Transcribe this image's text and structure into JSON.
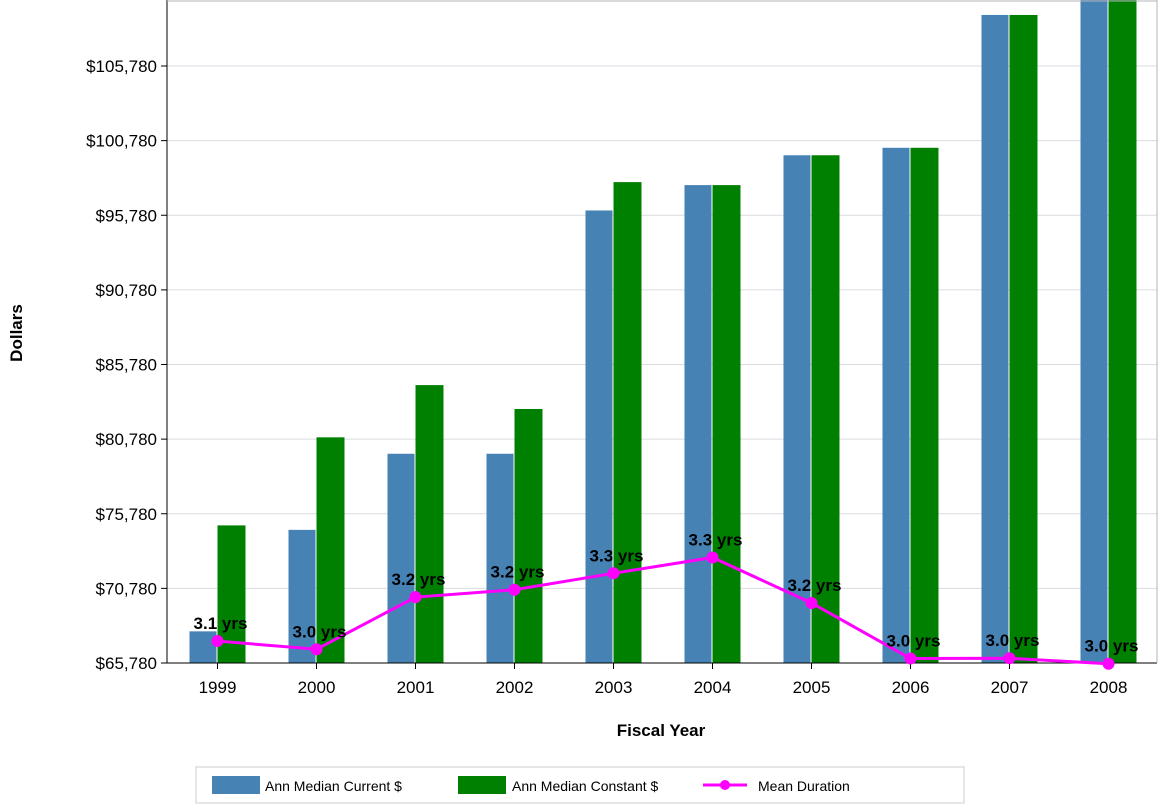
{
  "chart_data": {
    "type": "bar",
    "xlabel": "Fiscal Year",
    "ylabel": "Dollars",
    "categories": [
      "1999",
      "2000",
      "2001",
      "2002",
      "2003",
      "2004",
      "2005",
      "2006",
      "2007",
      "2008"
    ],
    "ylim": [
      65780,
      110200
    ],
    "yticks": [
      65780,
      70780,
      75780,
      80780,
      85780,
      90780,
      95780,
      100780,
      105780
    ],
    "ytick_labels": [
      "$65,780",
      "$70,780",
      "$75,780",
      "$80,780",
      "$85,780",
      "$90,780",
      "$95,780",
      "$100,780",
      "$105,780"
    ],
    "grid": true,
    "legend_position": "bottom",
    "series": [
      {
        "name": "Ann Median Current $",
        "kind": "bar",
        "color": "#4682B4",
        "values": [
          67900,
          74700,
          79800,
          79800,
          96100,
          97800,
          99800,
          100300,
          109200,
          110200
        ]
      },
      {
        "name": "Ann Median Constant $",
        "kind": "bar",
        "color": "#008000",
        "values": [
          75000,
          80900,
          84400,
          82800,
          98000,
          97800,
          99800,
          100300,
          109200,
          110200
        ]
      },
      {
        "name": "Mean Duration",
        "kind": "line",
        "color": "#FF00FF",
        "values": [
          3.1,
          3.0,
          3.2,
          3.2,
          3.3,
          3.3,
          3.2,
          3.0,
          3.0,
          3.0
        ],
        "labels": [
          "3.1 yrs",
          "3.0 yrs",
          "3.2 yrs",
          "3.2 yrs",
          "3.3 yrs",
          "3.3 yrs",
          "3.2 yrs",
          "3.0 yrs",
          "3.0 yrs",
          "3.0 yrs"
        ],
        "plot_positions_dollars": [
          67250,
          66700,
          70190,
          70690,
          71790,
          72850,
          69800,
          66080,
          66100,
          65730
        ]
      }
    ]
  }
}
